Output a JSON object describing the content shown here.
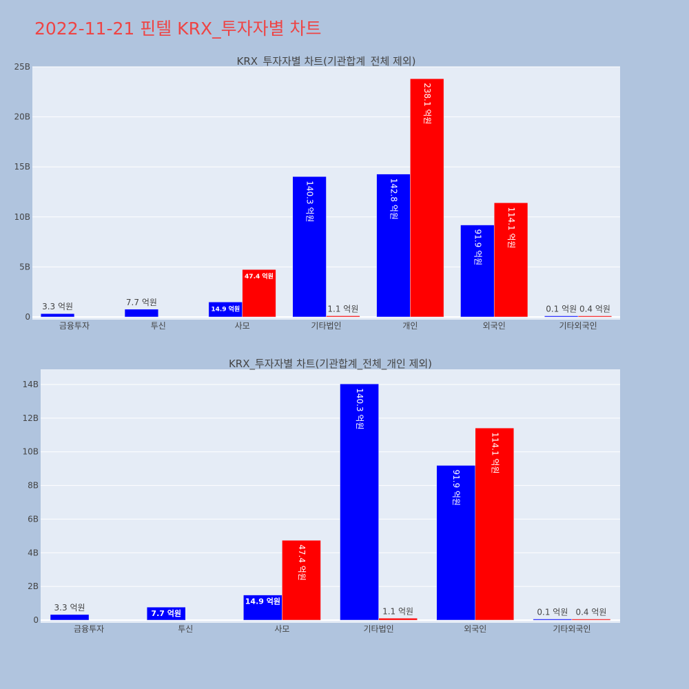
{
  "page": {
    "title": "2022-11-21 핀텔 KRX_투자자별 차트"
  },
  "chart_data": [
    {
      "type": "bar",
      "title": "KRX_투자자별 차트(기관합계_전체 제외)",
      "categories": [
        "금융투자",
        "투신",
        "사모",
        "기타법인",
        "개인",
        "외국인",
        "기타외국인"
      ],
      "y_ticks": [
        "0",
        "5B",
        "10B",
        "15B",
        "20B",
        "25B"
      ],
      "ylim": [
        0,
        25000000000
      ],
      "grid": true,
      "colors": {
        "series_1": "#0000ff",
        "series_2": "#ff0000"
      },
      "series": [
        {
          "values": [
            330000000,
            770000000,
            1490000000,
            14030000000,
            14280000000,
            9190000000,
            10000000
          ],
          "labels": [
            "3.3 억원",
            "7.7 억원",
            "14.9 억원",
            "140.3 억원",
            "142.8 억원",
            "91.9 억원",
            "0.1 억원"
          ]
        },
        {
          "values": [
            0,
            0,
            4740000000,
            110000000,
            23810000000,
            11410000000,
            40000000
          ],
          "labels": [
            "",
            "",
            "47.4 억원",
            "1.1 억원",
            "238.1 억원",
            "114.1 억원",
            "0.4 억원"
          ]
        }
      ]
    },
    {
      "type": "bar",
      "title": "KRX_투자자별 차트(기관합계_전체_개인 제외)",
      "categories": [
        "금융투자",
        "투신",
        "사모",
        "기타법인",
        "외국인",
        "기타외국인"
      ],
      "y_ticks": [
        "0",
        "2B",
        "4B",
        "6B",
        "8B",
        "10B",
        "12B",
        "14B"
      ],
      "ylim": [
        0,
        14900000000
      ],
      "grid": true,
      "colors": {
        "series_1": "#0000ff",
        "series_2": "#ff0000"
      },
      "series": [
        {
          "values": [
            330000000,
            770000000,
            1490000000,
            14030000000,
            9190000000,
            10000000
          ],
          "labels": [
            "3.3 억원",
            "7.7 억원",
            "14.9 억원",
            "140.3 억원",
            "91.9 억원",
            "0.1 억원"
          ]
        },
        {
          "values": [
            0,
            0,
            4740000000,
            110000000,
            11410000000,
            40000000
          ],
          "labels": [
            "",
            "",
            "47.4 억원",
            "1.1 억원",
            "114.1 억원",
            "0.4 억원"
          ]
        }
      ]
    }
  ]
}
